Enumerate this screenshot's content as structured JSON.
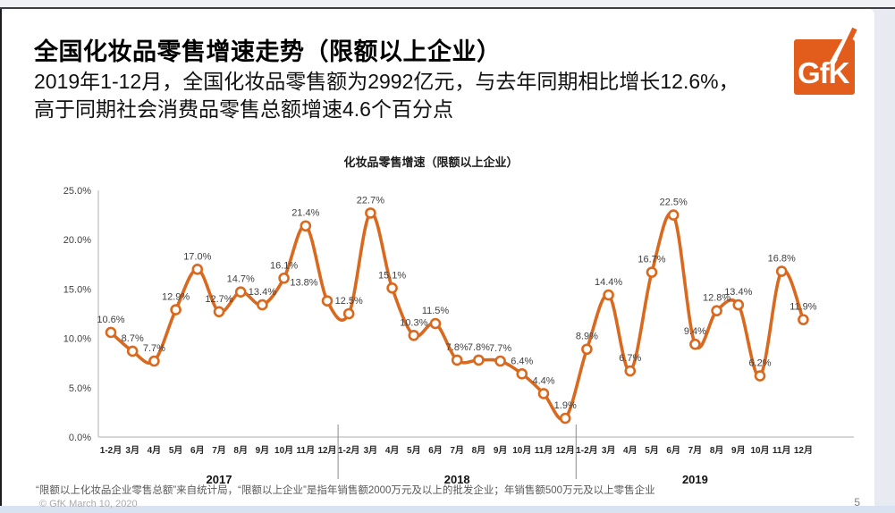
{
  "slide": {
    "title": "全国化妆品零售增速走势（限额以上企业）",
    "subtitle_lines": [
      "2019年1-12月，全国化妆品零售额为2992亿元，与去年同期相比增长12.6%，",
      "高于同期社会消费品零售总额增速4.6个百分点"
    ],
    "footnote": "“限额以上化妆品企业零售总额”来自统计局，“限额以上企业”是指年销售额2000万元及以上的批发企业；年销售额500万元及以上零售企业",
    "copyright": "© GfK March 10, 2020",
    "page_number": "5",
    "logo_text": "GfK"
  },
  "colors": {
    "brand_orange": "#E25C1C",
    "line_orange": "#D9691E",
    "axis_grey": "#BFBFBF",
    "separator_grey": "#8C8C8C",
    "tick_text": "#404040",
    "month_text": "#262626",
    "year_text": "#111111",
    "data_label": "#404040"
  },
  "chart_data": {
    "type": "line",
    "title": "化妆品零售增速（限额以上企业）",
    "ylabel": "",
    "xlabel": "",
    "ylim": [
      0,
      25
    ],
    "ytick_step": 5,
    "ytick_labels": [
      "0.0%",
      "5.0%",
      "10.0%",
      "15.0%",
      "20.0%",
      "25.0%"
    ],
    "grid": false,
    "legend": false,
    "smoothed_line": true,
    "marker": "open-circle",
    "x_groups": [
      {
        "year": "2017",
        "months": [
          "1-2月",
          "3月",
          "4月",
          "5月",
          "6月",
          "7月",
          "8月",
          "9月",
          "10月",
          "11月",
          "12月"
        ],
        "values": [
          10.6,
          8.7,
          7.7,
          12.9,
          17.0,
          12.7,
          14.7,
          13.4,
          16.1,
          21.4,
          13.8
        ]
      },
      {
        "year": "2018",
        "months": [
          "1-2月",
          "3月",
          "4月",
          "5月",
          "6月",
          "7月",
          "8月",
          "9月",
          "10月",
          "11月",
          "12月"
        ],
        "values": [
          12.5,
          22.7,
          15.1,
          10.3,
          11.5,
          7.8,
          7.8,
          7.7,
          6.4,
          4.4,
          1.9
        ]
      },
      {
        "year": "2019",
        "months": [
          "1-2月",
          "3月",
          "4月",
          "5月",
          "6月",
          "7月",
          "8月",
          "9月",
          "10月",
          "11月",
          "12月"
        ],
        "values": [
          8.9,
          14.4,
          6.7,
          16.7,
          22.5,
          9.4,
          12.8,
          13.4,
          6.2,
          16.8,
          11.9
        ]
      }
    ],
    "data_label_format": "0.0%"
  }
}
